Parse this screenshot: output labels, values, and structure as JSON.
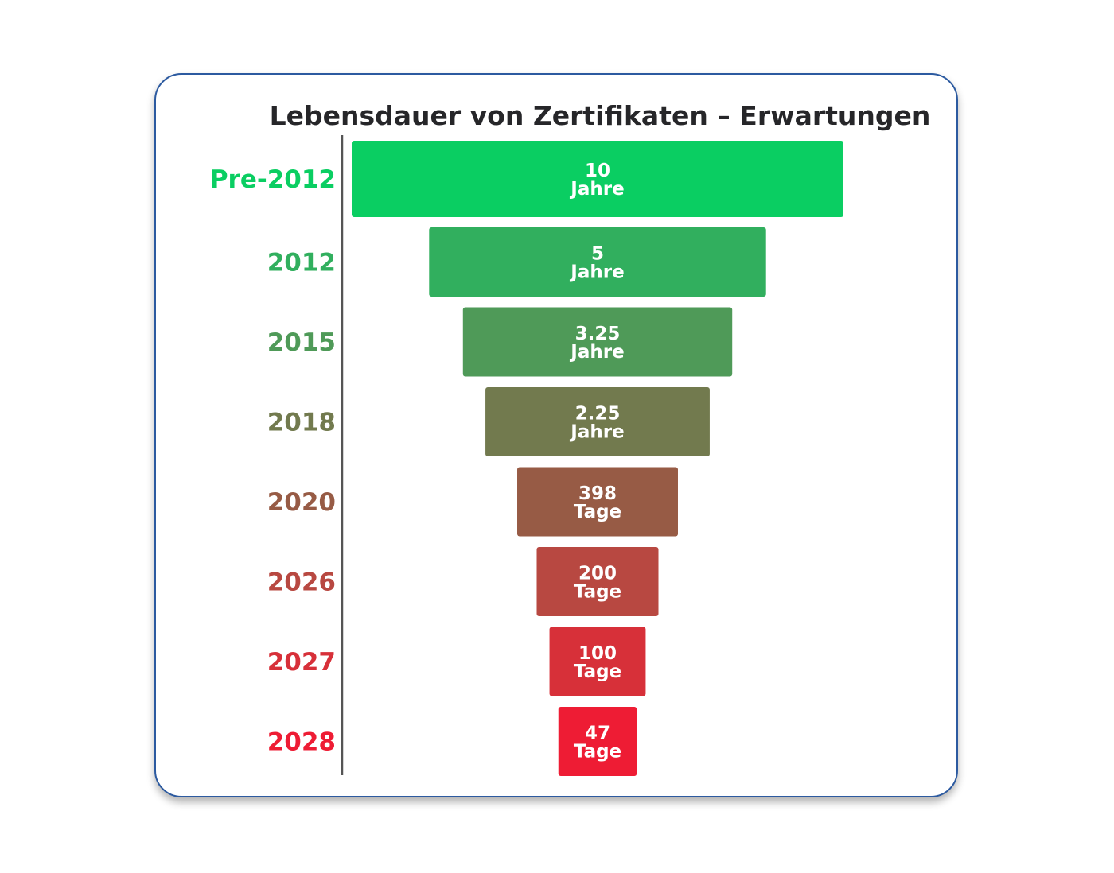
{
  "chart_data": {
    "type": "bar",
    "orientation": "horizontal",
    "title": "Lebensdauer von Zertifikaten – Erwartungen",
    "categories": [
      "Pre-2012",
      "2012",
      "2015",
      "2018",
      "2020",
      "2026",
      "2027",
      "2028"
    ],
    "values_days": [
      3650,
      1825,
      1186,
      821,
      398,
      200,
      100,
      47
    ],
    "labels": [
      [
        "10",
        "Jahre"
      ],
      [
        "5",
        "Jahre"
      ],
      [
        "3.25",
        "Jahre"
      ],
      [
        "2.25",
        "Jahre"
      ],
      [
        "398",
        "Tage"
      ],
      [
        "200",
        "Tage"
      ],
      [
        "100",
        "Tage"
      ],
      [
        "47",
        "Tage"
      ]
    ],
    "colors": [
      "#0ace62",
      "#31af5e",
      "#4f9a58",
      "#727a4e",
      "#975b45",
      "#b84841",
      "#d73039",
      "#ee1c34"
    ]
  }
}
